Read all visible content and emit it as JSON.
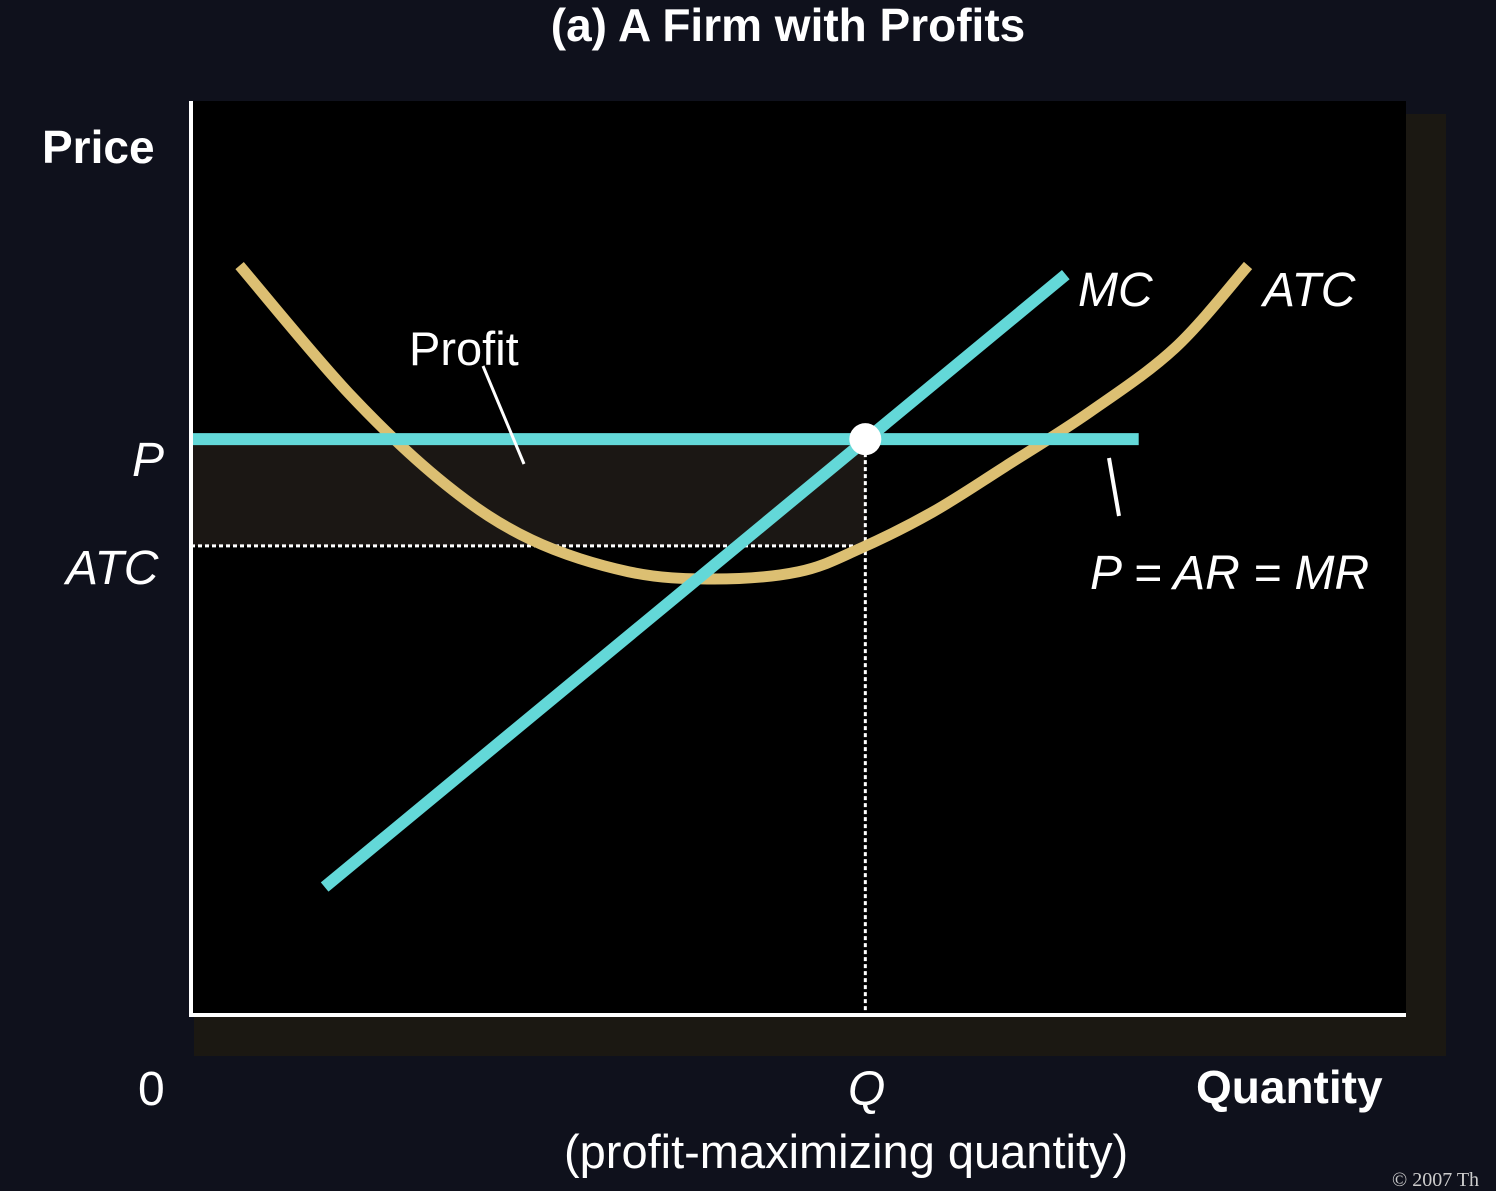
{
  "title": "(a) A Firm with Profits",
  "axes": {
    "y_label": "Price",
    "x_label": "Quantity",
    "origin_label": "0"
  },
  "ticks": {
    "price_label": "P",
    "atc_label": "ATC",
    "quantity_label": "Q",
    "quantity_note": "(profit-maximizing quantity)"
  },
  "curve_labels": {
    "mc": "MC",
    "atc": "ATC",
    "demand": "P = AR = MR",
    "profit": "Profit"
  },
  "copyright": "© 2007 Th",
  "colors": {
    "background": "#0f111c",
    "plot_background": "#000000",
    "shadow": "#1b1812",
    "mc_line": "#63d8d8",
    "demand_line": "#63d8d8",
    "atc_curve": "#dcbf72",
    "profit_area": "#1b1714",
    "axis": "#ffffff",
    "point": "#ffffff"
  },
  "chart_data": {
    "type": "line",
    "title": "(a) A Firm with Profits",
    "xlabel": "Quantity",
    "ylabel": "Price",
    "x_ticks": [
      "0",
      "Q"
    ],
    "y_ticks": [
      "P",
      "ATC"
    ],
    "grid": false,
    "series": [
      {
        "name": "MC",
        "kind": "linear-upward",
        "x": [
          0.11,
          0.72
        ],
        "y": [
          0.14,
          0.81
        ]
      },
      {
        "name": "ATC",
        "kind": "u-shaped",
        "x": [
          0.04,
          0.13,
          0.21,
          0.28,
          0.36,
          0.43,
          0.5,
          0.55,
          0.61,
          0.67,
          0.74,
          0.81,
          0.87
        ],
        "y": [
          0.82,
          0.68,
          0.58,
          0.52,
          0.485,
          0.477,
          0.485,
          0.51,
          0.55,
          0.6,
          0.66,
          0.73,
          0.82
        ]
      },
      {
        "name": "P = AR = MR",
        "kind": "horizontal",
        "x": [
          0.0,
          0.78
        ],
        "y": [
          0.63,
          0.63
        ]
      }
    ],
    "annotations": [
      {
        "text": "Profit",
        "region": "rectangle between P and ATC from 0 to Q"
      },
      {
        "text": "Q",
        "marker": "MC = MR intersection",
        "x": 0.555,
        "y": 0.63
      }
    ]
  }
}
